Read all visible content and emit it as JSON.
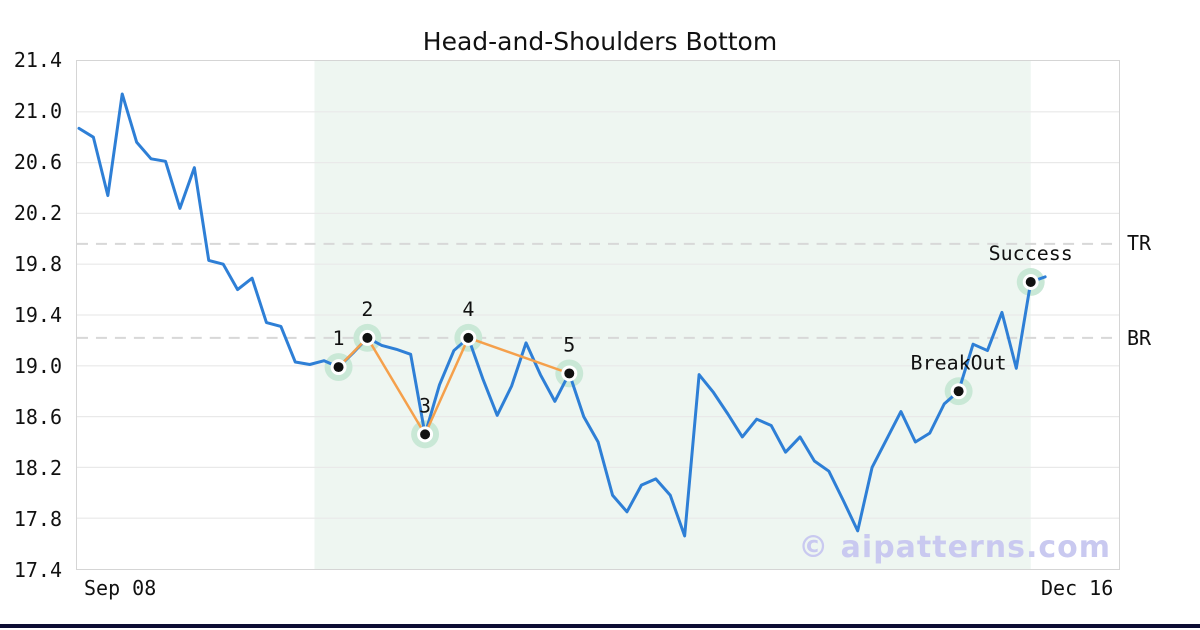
{
  "chart_data": {
    "type": "line",
    "title": "Head-and-Shoulders Bottom",
    "x_tick_labels": [
      "Sep 08",
      "Dec 16"
    ],
    "ylim": [
      17.4,
      21.4
    ],
    "y_tick_labels": [
      "21.4",
      "21.0",
      "20.6",
      "20.2",
      "19.8",
      "19.4",
      "19.0",
      "18.6",
      "18.2",
      "17.8",
      "17.4"
    ],
    "grid": true,
    "legend": false,
    "series": [
      {
        "name": "price",
        "values": [
          20.87,
          20.8,
          20.34,
          21.14,
          20.76,
          20.63,
          20.61,
          20.24,
          20.56,
          19.83,
          19.8,
          19.6,
          19.69,
          19.34,
          19.31,
          19.03,
          19.01,
          19.04,
          18.99,
          19.1,
          19.22,
          19.16,
          19.13,
          19.09,
          18.46,
          18.85,
          19.12,
          19.22,
          18.9,
          18.61,
          18.84,
          19.18,
          18.93,
          18.72,
          18.94,
          18.6,
          18.4,
          17.98,
          17.85,
          18.06,
          18.11,
          17.98,
          17.66,
          18.93,
          18.79,
          18.62,
          18.44,
          18.58,
          18.53,
          18.32,
          18.44,
          18.25,
          18.17,
          17.94,
          17.7,
          18.2,
          18.42,
          18.64,
          18.4,
          18.47,
          18.7,
          18.8,
          19.17,
          19.12,
          19.42,
          18.98,
          19.66,
          19.7
        ]
      }
    ],
    "pattern_points": [
      {
        "label": "1",
        "index": 18,
        "value": 18.99
      },
      {
        "label": "2",
        "index": 20,
        "value": 19.22
      },
      {
        "label": "3",
        "index": 24,
        "value": 18.46
      },
      {
        "label": "4",
        "index": 27,
        "value": 19.22
      },
      {
        "label": "5",
        "index": 34,
        "value": 18.94
      }
    ],
    "annotations": [
      {
        "label": "BreakOut",
        "index": 61,
        "value": 18.8
      },
      {
        "label": "Success",
        "index": 66,
        "value": 19.66
      }
    ],
    "hlines": [
      {
        "label": "TR",
        "value": 19.96
      },
      {
        "label": "BR",
        "value": 19.22
      }
    ],
    "shaded_region": {
      "start_index": 16.33,
      "end_index": 66
    }
  },
  "watermark": "© aipatterns.com",
  "colors": {
    "line": "#2e7fd6",
    "pattern": "#f5a04b",
    "halo": "#c9e8d6",
    "shade": "#eef6f1",
    "grid": "#e9e9e9",
    "dashed": "#d8d8d8",
    "marker_dot": "#111111",
    "marker_ring": "#ffffff",
    "watermark": "#c9c9f0",
    "footer_bar": "#0d0d33",
    "text": "#111111"
  }
}
